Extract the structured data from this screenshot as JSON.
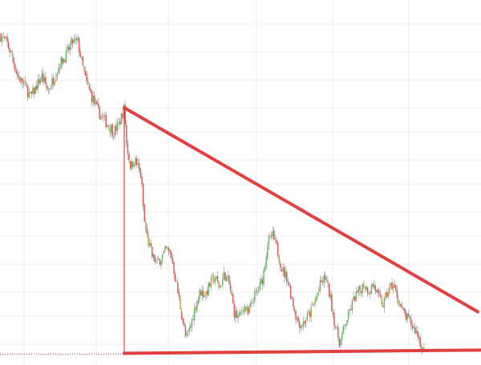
{
  "chart_data": {
    "type": "candlestick",
    "title": "",
    "xlabel": "",
    "ylabel": "",
    "grid": true,
    "legend": "none",
    "x_range": [
      0,
      600
    ],
    "y_range": [
      0,
      100
    ],
    "colors": {
      "up": "#5cb85c",
      "down": "#d9534f",
      "wick": "#888888",
      "mixed": "#b5a642",
      "pattern_line": "#e04040",
      "gridline": "#eeeeee",
      "dotted_baseline": "#e04040"
    },
    "price_path": [
      [
        0,
        94
      ],
      [
        8,
        92
      ],
      [
        15,
        88
      ],
      [
        22,
        82
      ],
      [
        30,
        80
      ],
      [
        38,
        76
      ],
      [
        45,
        79
      ],
      [
        52,
        82
      ],
      [
        60,
        78
      ],
      [
        68,
        82
      ],
      [
        75,
        86
      ],
      [
        82,
        88
      ],
      [
        90,
        92
      ],
      [
        97,
        92
      ],
      [
        102,
        86
      ],
      [
        108,
        80
      ],
      [
        115,
        76
      ],
      [
        122,
        72
      ],
      [
        128,
        70
      ],
      [
        135,
        68
      ],
      [
        142,
        66
      ],
      [
        148,
        68
      ],
      [
        155,
        73
      ],
      [
        158,
        62
      ],
      [
        163,
        56
      ],
      [
        168,
        58
      ],
      [
        172,
        56
      ],
      [
        176,
        53
      ],
      [
        180,
        40
      ],
      [
        185,
        34
      ],
      [
        190,
        30
      ],
      [
        196,
        28
      ],
      [
        202,
        30
      ],
      [
        208,
        32
      ],
      [
        214,
        30
      ],
      [
        220,
        22
      ],
      [
        226,
        14
      ],
      [
        232,
        6
      ],
      [
        238,
        10
      ],
      [
        244,
        16
      ],
      [
        250,
        20
      ],
      [
        256,
        19
      ],
      [
        262,
        22
      ],
      [
        268,
        24
      ],
      [
        274,
        21
      ],
      [
        280,
        25
      ],
      [
        286,
        22
      ],
      [
        292,
        14
      ],
      [
        298,
        12
      ],
      [
        304,
        16
      ],
      [
        310,
        13
      ],
      [
        316,
        18
      ],
      [
        322,
        20
      ],
      [
        328,
        24
      ],
      [
        334,
        34
      ],
      [
        340,
        36
      ],
      [
        346,
        32
      ],
      [
        352,
        26
      ],
      [
        358,
        24
      ],
      [
        364,
        18
      ],
      [
        370,
        12
      ],
      [
        376,
        10
      ],
      [
        382,
        12
      ],
      [
        388,
        14
      ],
      [
        394,
        18
      ],
      [
        400,
        22
      ],
      [
        406,
        24
      ],
      [
        412,
        18
      ],
      [
        418,
        10
      ],
      [
        424,
        5
      ],
      [
        430,
        10
      ],
      [
        436,
        14
      ],
      [
        442,
        18
      ],
      [
        448,
        20
      ],
      [
        454,
        22
      ],
      [
        460,
        20
      ],
      [
        466,
        22
      ],
      [
        472,
        18
      ],
      [
        478,
        16
      ],
      [
        484,
        20
      ],
      [
        490,
        22
      ],
      [
        496,
        18
      ],
      [
        502,
        14
      ],
      [
        508,
        12
      ],
      [
        514,
        10
      ],
      [
        520,
        8
      ],
      [
        526,
        4
      ],
      [
        530,
        2
      ]
    ],
    "pattern": {
      "type": "descending-triangle",
      "resistance": [
        [
          155,
          73
        ],
        [
          596,
          14
        ]
      ],
      "support": [
        [
          155,
          2
        ],
        [
          600,
          2
        ]
      ],
      "vertical": [
        [
          155,
          73
        ],
        [
          155,
          2
        ]
      ]
    }
  }
}
